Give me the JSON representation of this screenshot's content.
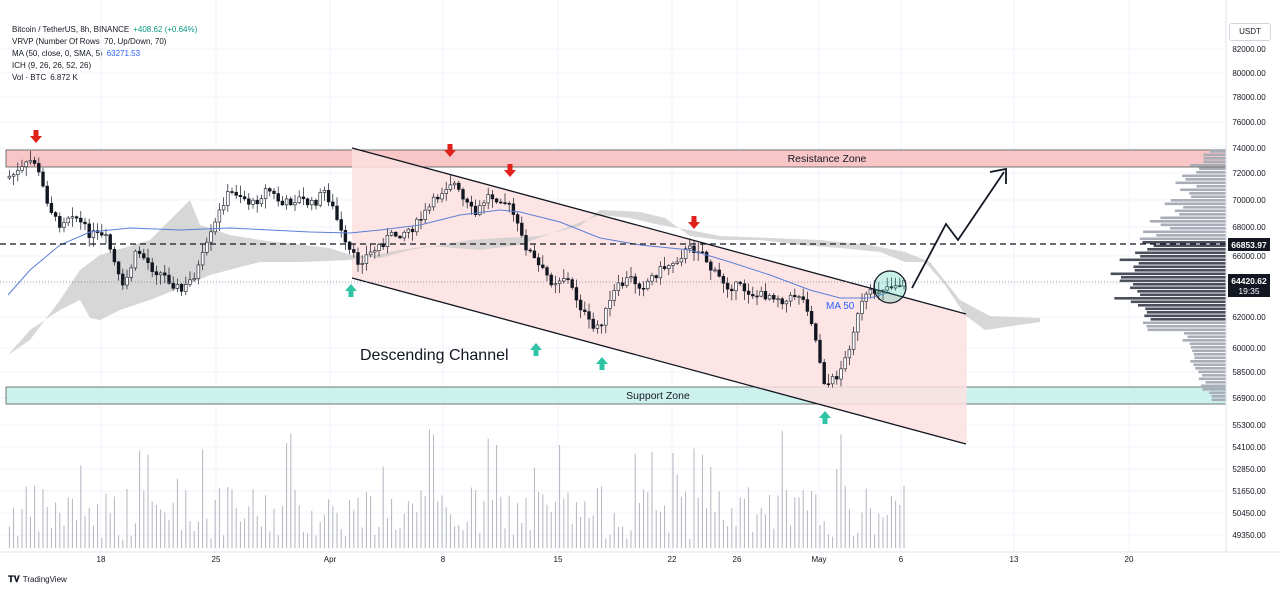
{
  "legend": {
    "symbol": "Bitcoin / TetherUS, 8h, BINANCE",
    "change": "+408.62 (+0.64%)",
    "vrvp": "VRVP (Number Of Rows, 70, Up/Down, 70)",
    "ma": "MA (50, close, 0, SMA, 5)",
    "ma_value": "63271.53",
    "ich": "ICH (9, 26, 26, 52, 26)",
    "vol": "Vol · BTC",
    "vol_value": "6.872 K"
  },
  "currency_button": "USDT",
  "branding": "TradingView",
  "colors": {
    "up": "#089981",
    "down": "#f23645",
    "ma": "#5b7fd6",
    "channel_fill": "#fde0e0",
    "resistance_fill": "#f8c6c6",
    "support_fill": "#cdf2ee",
    "cloud": "#c9c9c9",
    "arrow_down": "#e0201b",
    "arrow_up": "#2ec4a4",
    "price_label_bg": "#131722"
  },
  "annotations": {
    "resistance": "Resistance Zone",
    "support": "Support Zone",
    "channel": "Descending Channel",
    "ma": "MA 50"
  },
  "chart_data": {
    "type": "candlestick",
    "y_axis_labels": [
      "82000.00",
      "80000.00",
      "78000.00",
      "76000.00",
      "74000.00",
      "72000.00",
      "70000.00",
      "68000.00",
      "66000.00",
      "64000.00",
      "62000.00",
      "60000.00",
      "58500.00",
      "56900.00",
      "55300.00",
      "54100.00",
      "52850.00",
      "51650.00",
      "50450.00",
      "49350.00"
    ],
    "x_axis_labels": [
      "18",
      "25",
      "Apr",
      "8",
      "15",
      "22",
      "26",
      "May",
      "6",
      "13",
      "20"
    ],
    "current_price": "64420.62",
    "countdown": "19:35",
    "dashed_level": "66853.97",
    "resistance_zone": [
      72800,
      74000
    ],
    "support_zone": [
      56700,
      57900
    ],
    "ma_label": "MA 50",
    "ylim": [
      49350,
      82000
    ],
    "grid": true
  }
}
